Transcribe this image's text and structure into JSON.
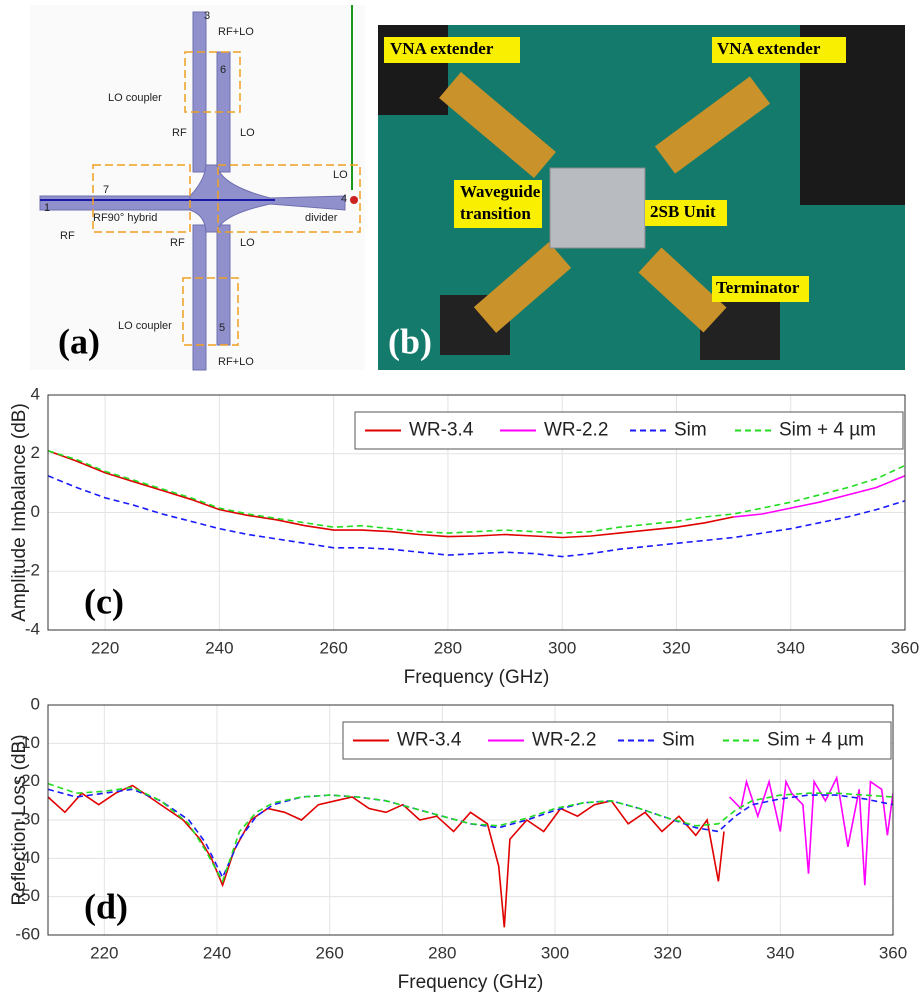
{
  "diagram": {
    "panel_label": "(a)",
    "ports": [
      "3",
      "6",
      "7",
      "1",
      "4",
      "5"
    ],
    "annotations": [
      "RF+LO",
      "LO coupler",
      "RF",
      "LO",
      "LO",
      "RF90° hybrid",
      "divider",
      "RF",
      "RF",
      "LO",
      "LO coupler",
      "RF+LO"
    ]
  },
  "photo": {
    "panel_label": "(b)",
    "labels": [
      "VNA extender",
      "VNA extender",
      "2SB Unit",
      "Terminator"
    ],
    "transition_label": [
      "Waveguide",
      "transition"
    ]
  },
  "chart_data": [
    {
      "type": "line",
      "panel_label": "(c)",
      "xlabel": "Frequency (GHz)",
      "ylabel": "Amplitude Imbalance (dB)",
      "xlim": [
        210,
        360
      ],
      "xticks": [
        220,
        240,
        260,
        280,
        300,
        320,
        340,
        360
      ],
      "ylim": [
        -4,
        4
      ],
      "yticks": [
        -4,
        -2,
        0,
        2,
        4
      ],
      "grid": true,
      "legend_position": "upper right",
      "series": [
        {
          "name": "WR-3.4",
          "color": "#e00000",
          "style": "solid",
          "x": [
            210,
            215,
            220,
            225,
            230,
            235,
            240,
            245,
            250,
            255,
            260,
            265,
            270,
            275,
            280,
            285,
            290,
            295,
            300,
            305,
            310,
            315,
            320,
            325,
            330
          ],
          "values": [
            2.1,
            1.75,
            1.35,
            1.05,
            0.75,
            0.45,
            0.1,
            -0.1,
            -0.25,
            -0.45,
            -0.6,
            -0.6,
            -0.65,
            -0.75,
            -0.82,
            -0.8,
            -0.75,
            -0.8,
            -0.85,
            -0.8,
            -0.7,
            -0.6,
            -0.5,
            -0.35,
            -0.15
          ]
        },
        {
          "name": "WR-2.2",
          "color": "#ff00ff",
          "style": "solid",
          "x": [
            330,
            335,
            340,
            345,
            350,
            355,
            360
          ],
          "values": [
            -0.15,
            -0.05,
            0.15,
            0.35,
            0.6,
            0.85,
            1.25
          ]
        },
        {
          "name": "Sim",
          "color": "#1a1aff",
          "style": "dashed",
          "x": [
            210,
            215,
            220,
            225,
            230,
            235,
            240,
            245,
            250,
            255,
            260,
            265,
            270,
            275,
            280,
            285,
            290,
            295,
            300,
            305,
            310,
            315,
            320,
            325,
            330,
            335,
            340,
            345,
            350,
            355,
            360
          ],
          "values": [
            1.25,
            0.85,
            0.5,
            0.25,
            -0.05,
            -0.3,
            -0.55,
            -0.75,
            -0.9,
            -1.05,
            -1.2,
            -1.2,
            -1.25,
            -1.35,
            -1.45,
            -1.4,
            -1.35,
            -1.4,
            -1.5,
            -1.4,
            -1.25,
            -1.15,
            -1.05,
            -0.95,
            -0.85,
            -0.7,
            -0.55,
            -0.35,
            -0.15,
            0.1,
            0.4
          ]
        },
        {
          "name": "Sim + 4 µm",
          "color": "#22dd22",
          "style": "dashed",
          "x": [
            210,
            215,
            220,
            225,
            230,
            235,
            240,
            245,
            250,
            255,
            260,
            265,
            270,
            275,
            280,
            285,
            290,
            295,
            300,
            305,
            310,
            315,
            320,
            325,
            330,
            335,
            340,
            345,
            350,
            355,
            360
          ],
          "values": [
            2.1,
            1.8,
            1.4,
            1.1,
            0.8,
            0.5,
            0.15,
            -0.05,
            -0.2,
            -0.35,
            -0.5,
            -0.45,
            -0.55,
            -0.65,
            -0.7,
            -0.65,
            -0.6,
            -0.65,
            -0.7,
            -0.65,
            -0.5,
            -0.4,
            -0.3,
            -0.15,
            -0.05,
            0.15,
            0.35,
            0.6,
            0.85,
            1.15,
            1.6
          ]
        }
      ]
    },
    {
      "type": "line",
      "panel_label": "(d)",
      "xlabel": "Frequency (GHz)",
      "ylabel": "Reflection Loss (dB)",
      "xlim": [
        210,
        360
      ],
      "xticks": [
        220,
        240,
        260,
        280,
        300,
        320,
        340,
        360
      ],
      "ylim": [
        -60,
        0
      ],
      "yticks": [
        -60,
        -50,
        -40,
        -30,
        -20,
        -10,
        0
      ],
      "grid": true,
      "legend_position": "upper right",
      "series": [
        {
          "name": "WR-3.4",
          "color": "#e00000",
          "style": "solid",
          "x": [
            210,
            213,
            216,
            219,
            222,
            225,
            228,
            231,
            234,
            237,
            239,
            241,
            243,
            246,
            249,
            252,
            255,
            258,
            261,
            264,
            267,
            270,
            273,
            276,
            279,
            282,
            285,
            288,
            290,
            291,
            292,
            295,
            298,
            301,
            304,
            307,
            310,
            313,
            316,
            319,
            322,
            325,
            327,
            329,
            330
          ],
          "values": [
            -24,
            -28,
            -23,
            -26,
            -23,
            -21,
            -24,
            -27,
            -30,
            -35,
            -40,
            -47,
            -38,
            -30,
            -27,
            -28,
            -30,
            -26,
            -25,
            -24,
            -27,
            -28,
            -26,
            -30,
            -29,
            -33,
            -28,
            -31,
            -42,
            -58,
            -35,
            -30,
            -33,
            -27,
            -29,
            -26,
            -25,
            -31,
            -28,
            -33,
            -29,
            -34,
            -30,
            -46,
            -33
          ]
        },
        {
          "name": "WR-2.2",
          "color": "#ff00ff",
          "style": "solid",
          "x": [
            331,
            333,
            334,
            336,
            338,
            340,
            341,
            342,
            344,
            345,
            346,
            348,
            350,
            352,
            354,
            355,
            356,
            358,
            359,
            360
          ],
          "values": [
            -24,
            -27,
            -20,
            -29,
            -20,
            -33,
            -20,
            -23,
            -26,
            -44,
            -20,
            -25,
            -19,
            -37,
            -22,
            -47,
            -20,
            -22,
            -34,
            -23
          ]
        },
        {
          "name": "Sim",
          "color": "#1a1aff",
          "style": "dashed",
          "x": [
            210,
            215,
            220,
            225,
            230,
            235,
            238,
            241,
            244,
            247,
            250,
            255,
            260,
            265,
            270,
            275,
            280,
            285,
            290,
            295,
            300,
            305,
            310,
            315,
            320,
            325,
            329,
            332,
            335,
            340,
            345,
            350,
            355,
            360
          ],
          "values": [
            -22,
            -24,
            -23,
            -22,
            -25,
            -30,
            -36,
            -45,
            -35,
            -29,
            -26,
            -24,
            -23.5,
            -24,
            -25,
            -27,
            -29,
            -31,
            -32,
            -30,
            -27.5,
            -25.5,
            -25,
            -27,
            -29.5,
            -32,
            -33,
            -29,
            -26,
            -24.5,
            -23.5,
            -23.5,
            -24.5,
            -26
          ]
        },
        {
          "name": "Sim + 4 µm",
          "color": "#22dd22",
          "style": "dashed",
          "x": [
            210,
            215,
            220,
            225,
            230,
            235,
            238,
            241,
            244,
            247,
            250,
            255,
            260,
            265,
            270,
            275,
            280,
            285,
            290,
            295,
            300,
            305,
            310,
            315,
            320,
            325,
            329,
            332,
            335,
            340,
            345,
            350,
            355,
            360
          ],
          "values": [
            -20.5,
            -23,
            -22.5,
            -21.5,
            -25,
            -31,
            -38,
            -46,
            -33,
            -28,
            -25.5,
            -24,
            -23.5,
            -24,
            -25,
            -27,
            -29,
            -31,
            -31.5,
            -29.5,
            -27,
            -25.5,
            -25,
            -27,
            -29.5,
            -31.5,
            -31,
            -27.5,
            -25,
            -23.5,
            -23,
            -23,
            -23.5,
            -24
          ]
        }
      ]
    }
  ]
}
